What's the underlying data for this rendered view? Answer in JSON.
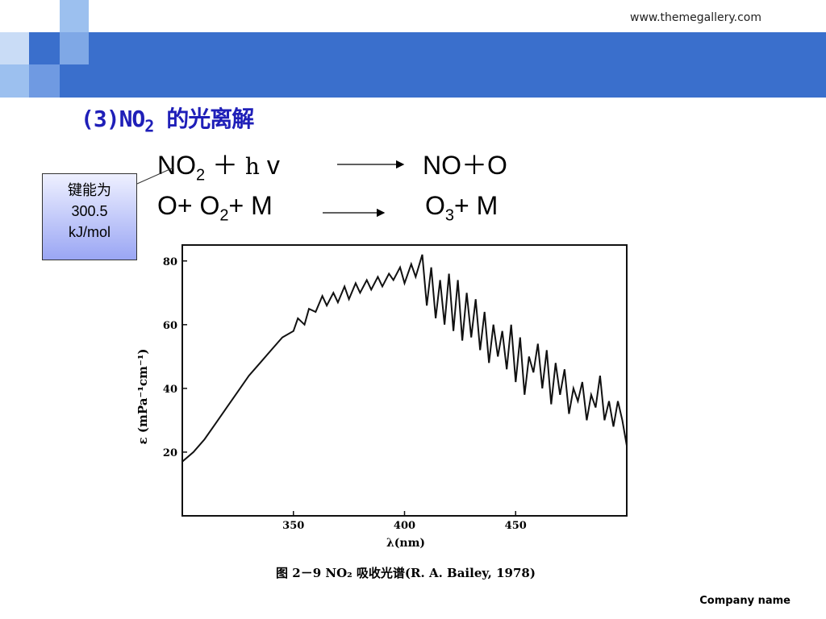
{
  "header": {
    "url": "www.themegallery.com"
  },
  "slide": {
    "title_prefix": "(3)NO",
    "title_sub": "2",
    "title_suffix": " 的光离解",
    "equation1": {
      "lhs_a": "NO",
      "lhs_sub": "2",
      "lhs_b": " ＋ ",
      "h": "h",
      "v": " v",
      "rhs": "NO＋O"
    },
    "equation2": {
      "lhs_a": "O+ O",
      "lhs_sub": "2",
      "lhs_b": "+ M",
      "rhs_a": "O",
      "rhs_sub": "3",
      "rhs_b": "+ M"
    },
    "callout": {
      "line1": "键能为",
      "line2": "300.5",
      "line3": "kJ/mol"
    }
  },
  "footer": {
    "company": "Company name"
  },
  "chart_data": {
    "type": "line",
    "caption": "图 2－9 NO₂ 吸收光谱(R. A. Bailey, 1978)",
    "xlabel": "λ(nm)",
    "ylabel": "ε (mPa⁻¹cm⁻¹)",
    "xlim": [
      300,
      500
    ],
    "ylim": [
      0,
      85
    ],
    "xticks": [
      350,
      400,
      450
    ],
    "yticks": [
      20,
      40,
      60,
      80
    ],
    "series": [
      {
        "x": [
          300,
          305,
          310,
          315,
          320,
          325,
          330,
          335,
          340,
          345,
          350,
          352,
          355,
          357,
          360,
          363,
          365,
          368,
          370,
          373,
          375,
          378,
          380,
          383,
          385,
          388,
          390,
          393,
          395,
          398,
          400,
          403,
          405,
          408,
          410,
          412,
          414,
          416,
          418,
          420,
          422,
          424,
          426,
          428,
          430,
          432,
          434,
          436,
          438,
          440,
          442,
          444,
          446,
          448,
          450,
          452,
          454,
          456,
          458,
          460,
          462,
          464,
          466,
          468,
          470,
          472,
          474,
          476,
          478,
          480,
          482,
          484,
          486,
          488,
          490,
          492,
          494,
          496,
          498,
          500
        ],
        "y": [
          17,
          20,
          24,
          29,
          34,
          39,
          44,
          48,
          52,
          56,
          58,
          62,
          60,
          65,
          64,
          69,
          66,
          70,
          67,
          72,
          68,
          73,
          70,
          74,
          71,
          75,
          72,
          76,
          74,
          78,
          73,
          79,
          75,
          82,
          66,
          78,
          62,
          74,
          60,
          76,
          58,
          74,
          55,
          70,
          56,
          68,
          52,
          64,
          48,
          60,
          50,
          58,
          46,
          60,
          42,
          56,
          38,
          50,
          45,
          54,
          40,
          52,
          35,
          48,
          38,
          46,
          32,
          40,
          36,
          42,
          30,
          38,
          34,
          44,
          30,
          36,
          28,
          36,
          30,
          22
        ]
      }
    ]
  }
}
